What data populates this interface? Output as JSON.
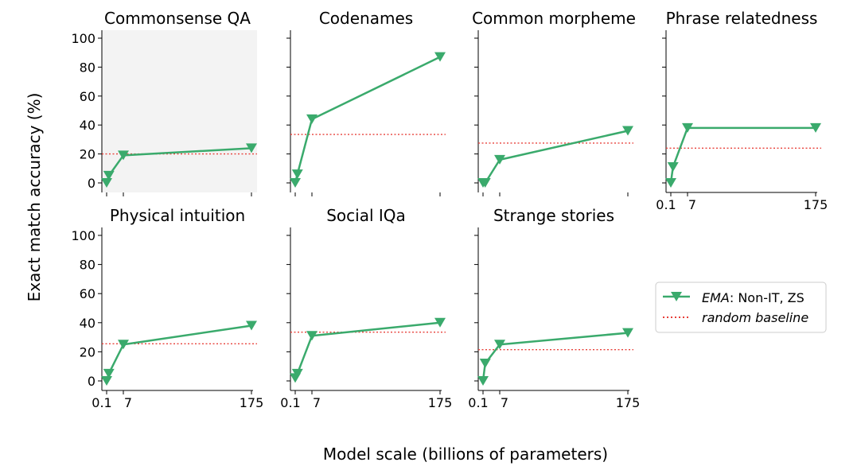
{
  "figure": {
    "ylabel": "Exact match accuracy (%)",
    "xlabel": "Model scale (billions of parameters)",
    "legend": [
      {
        "prefix": "EMA",
        "suffix": ": Non-IT, ZS",
        "color": "#3aaa6c",
        "style": "line-triangle"
      },
      {
        "label": "random baseline",
        "color": "#e8403a",
        "style": "dotted"
      }
    ]
  },
  "colors": {
    "series": "#3aaa6c",
    "baseline": "#e8403a",
    "highlight_bg": "#f3f3f3"
  },
  "chart_data": [
    {
      "type": "line",
      "title": "Commonsense QA",
      "x": [
        0.1,
        1,
        7,
        175
      ],
      "series": [
        {
          "name": "EMA: Non-IT, ZS",
          "values": [
            0,
            5,
            19,
            24
          ]
        }
      ],
      "baseline": 20,
      "ylim": [
        0,
        100
      ],
      "xlim": [
        0.1,
        175
      ],
      "yticks": [
        "0",
        "20",
        "40",
        "60",
        "80",
        "100"
      ],
      "xticks": [],
      "highlighted": true
    },
    {
      "type": "line",
      "title": "Codenames",
      "x": [
        0.1,
        1,
        7,
        175
      ],
      "series": [
        {
          "name": "EMA: Non-IT, ZS",
          "values": [
            0,
            6,
            44,
            87
          ]
        }
      ],
      "baseline": 33.5,
      "ylim": [
        0,
        100
      ],
      "xlim": [
        0.1,
        175
      ],
      "yticks": [],
      "xticks": []
    },
    {
      "type": "line",
      "title": "Common morpheme",
      "x": [
        0.1,
        1,
        7,
        175
      ],
      "series": [
        {
          "name": "EMA: Non-IT, ZS",
          "values": [
            0,
            0,
            16,
            36
          ]
        }
      ],
      "baseline": 27.5,
      "ylim": [
        0,
        100
      ],
      "xlim": [
        0.1,
        175
      ],
      "yticks": [],
      "xticks": []
    },
    {
      "type": "line",
      "title": "Phrase relatedness",
      "x": [
        0.1,
        1,
        7,
        175
      ],
      "series": [
        {
          "name": "EMA: Non-IT, ZS",
          "values": [
            0,
            11,
            38,
            38
          ]
        }
      ],
      "baseline": 24,
      "ylim": [
        0,
        100
      ],
      "xlim": [
        0.1,
        175
      ],
      "yticks": [],
      "xticks": [
        "0.1",
        "7",
        "175"
      ]
    },
    {
      "type": "line",
      "title": "Physical intuition",
      "x": [
        0.1,
        1,
        7,
        175
      ],
      "series": [
        {
          "name": "EMA: Non-IT, ZS",
          "values": [
            0,
            5,
            25,
            38
          ]
        }
      ],
      "baseline": 25.5,
      "ylim": [
        0,
        100
      ],
      "xlim": [
        0.1,
        175
      ],
      "yticks": [
        "0",
        "20",
        "40",
        "60",
        "80",
        "100"
      ],
      "xticks": [
        "0.1",
        "7",
        "175"
      ]
    },
    {
      "type": "line",
      "title": "Social IQa",
      "x": [
        0.1,
        1,
        7,
        175
      ],
      "series": [
        {
          "name": "EMA: Non-IT, ZS",
          "values": [
            2,
            5,
            31,
            40
          ]
        }
      ],
      "baseline": 33.5,
      "ylim": [
        0,
        100
      ],
      "xlim": [
        0.1,
        175
      ],
      "yticks": [],
      "xticks": [
        "0.1",
        "7",
        "175"
      ]
    },
    {
      "type": "line",
      "title": "Strange stories",
      "x": [
        0.1,
        1,
        7,
        175
      ],
      "series": [
        {
          "name": "EMA: Non-IT, ZS",
          "values": [
            0,
            12,
            25,
            33
          ]
        }
      ],
      "baseline": 21.5,
      "ylim": [
        0,
        100
      ],
      "xlim": [
        0.1,
        175
      ],
      "yticks": [],
      "xticks": [
        "0.1",
        "7",
        "175"
      ]
    }
  ]
}
